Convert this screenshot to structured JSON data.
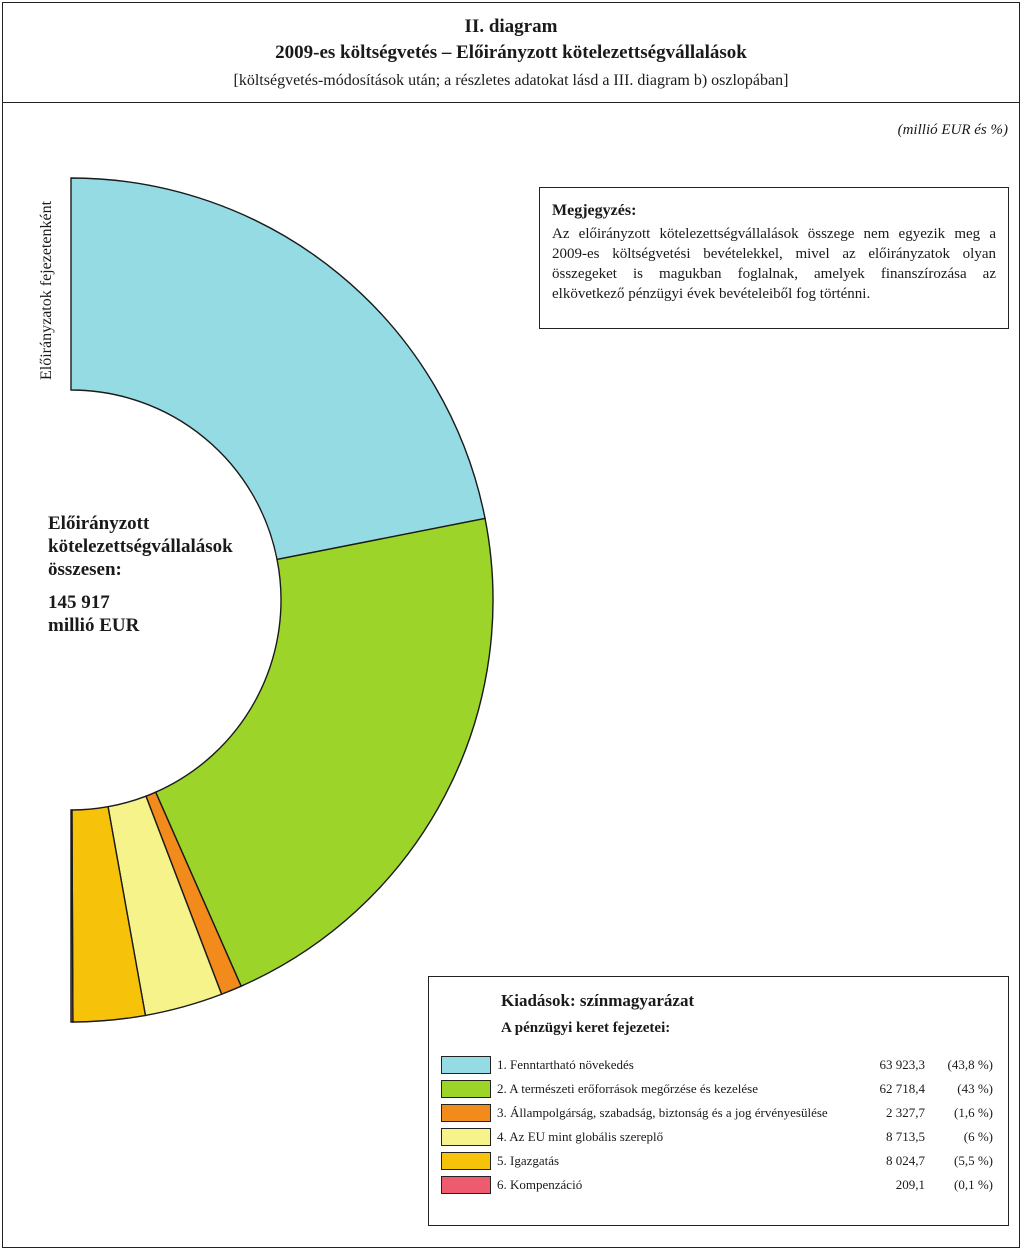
{
  "header": {
    "line1": "II. diagram",
    "line2": "2009-es költségvetés – Előirányzott kötelezettségvállalások",
    "line3": "[költségvetés-módosítások után; a részletes adatokat lásd a III. diagram b) oszlopában]"
  },
  "unit_label": "(millió EUR és %)",
  "vertical_label": "Előirányzatok fejezetenként",
  "note": {
    "title": "Megjegyzés:",
    "text": "Az előirányzott kötelezettségvállalások összege nem egyezik meg a 2009-es költségvetési bevételekkel, mivel az előirányzatok olyan összegeket is magukban foglalnak, amelyek finanszírozása az elkövetkező pénzügyi évek bevételeiből fog történni."
  },
  "center": {
    "label_line1": "Előirányzott",
    "label_line2": "kötelezettségvállalások",
    "label_line3": "összesen:",
    "value_line1": "145 917",
    "value_line2": "millió EUR"
  },
  "legend": {
    "title": "Kiadások: színmagyarázat",
    "subtitle": "A pénzügyi keret fejezetei:"
  },
  "chart_data": {
    "type": "pie",
    "subtype": "half-donut",
    "title": "2009-es költségvetés – Előirányzott kötelezettségvállalások",
    "total": 145917,
    "unit": "millió EUR",
    "categories": [
      "1. Fenntartható növekedés",
      "2. A természeti erőforrások megőrzése és kezelése",
      "3. Állampolgárság, szabadság, biztonság és a jog érvényesülése",
      "4. Az EU mint globális szereplő",
      "5. Igazgatás",
      "6. Kompenzáció"
    ],
    "values": [
      63923.3,
      62718.4,
      2327.7,
      8713.5,
      8024.7,
      209.1
    ],
    "value_labels": [
      "63 923,3",
      "62 718,4",
      "2 327,7",
      "8 713,5",
      "8 024,7",
      "209,1"
    ],
    "percent_labels": [
      "(43,8 %)",
      "(43 %)",
      "(1,6 %)",
      "(6 %)",
      "(5,5 %)",
      "(0,1 %)"
    ],
    "colors": [
      "#94dbe3",
      "#9dd42a",
      "#f28a1c",
      "#f6f38a",
      "#f7c20a",
      "#ee5a6e"
    ]
  }
}
